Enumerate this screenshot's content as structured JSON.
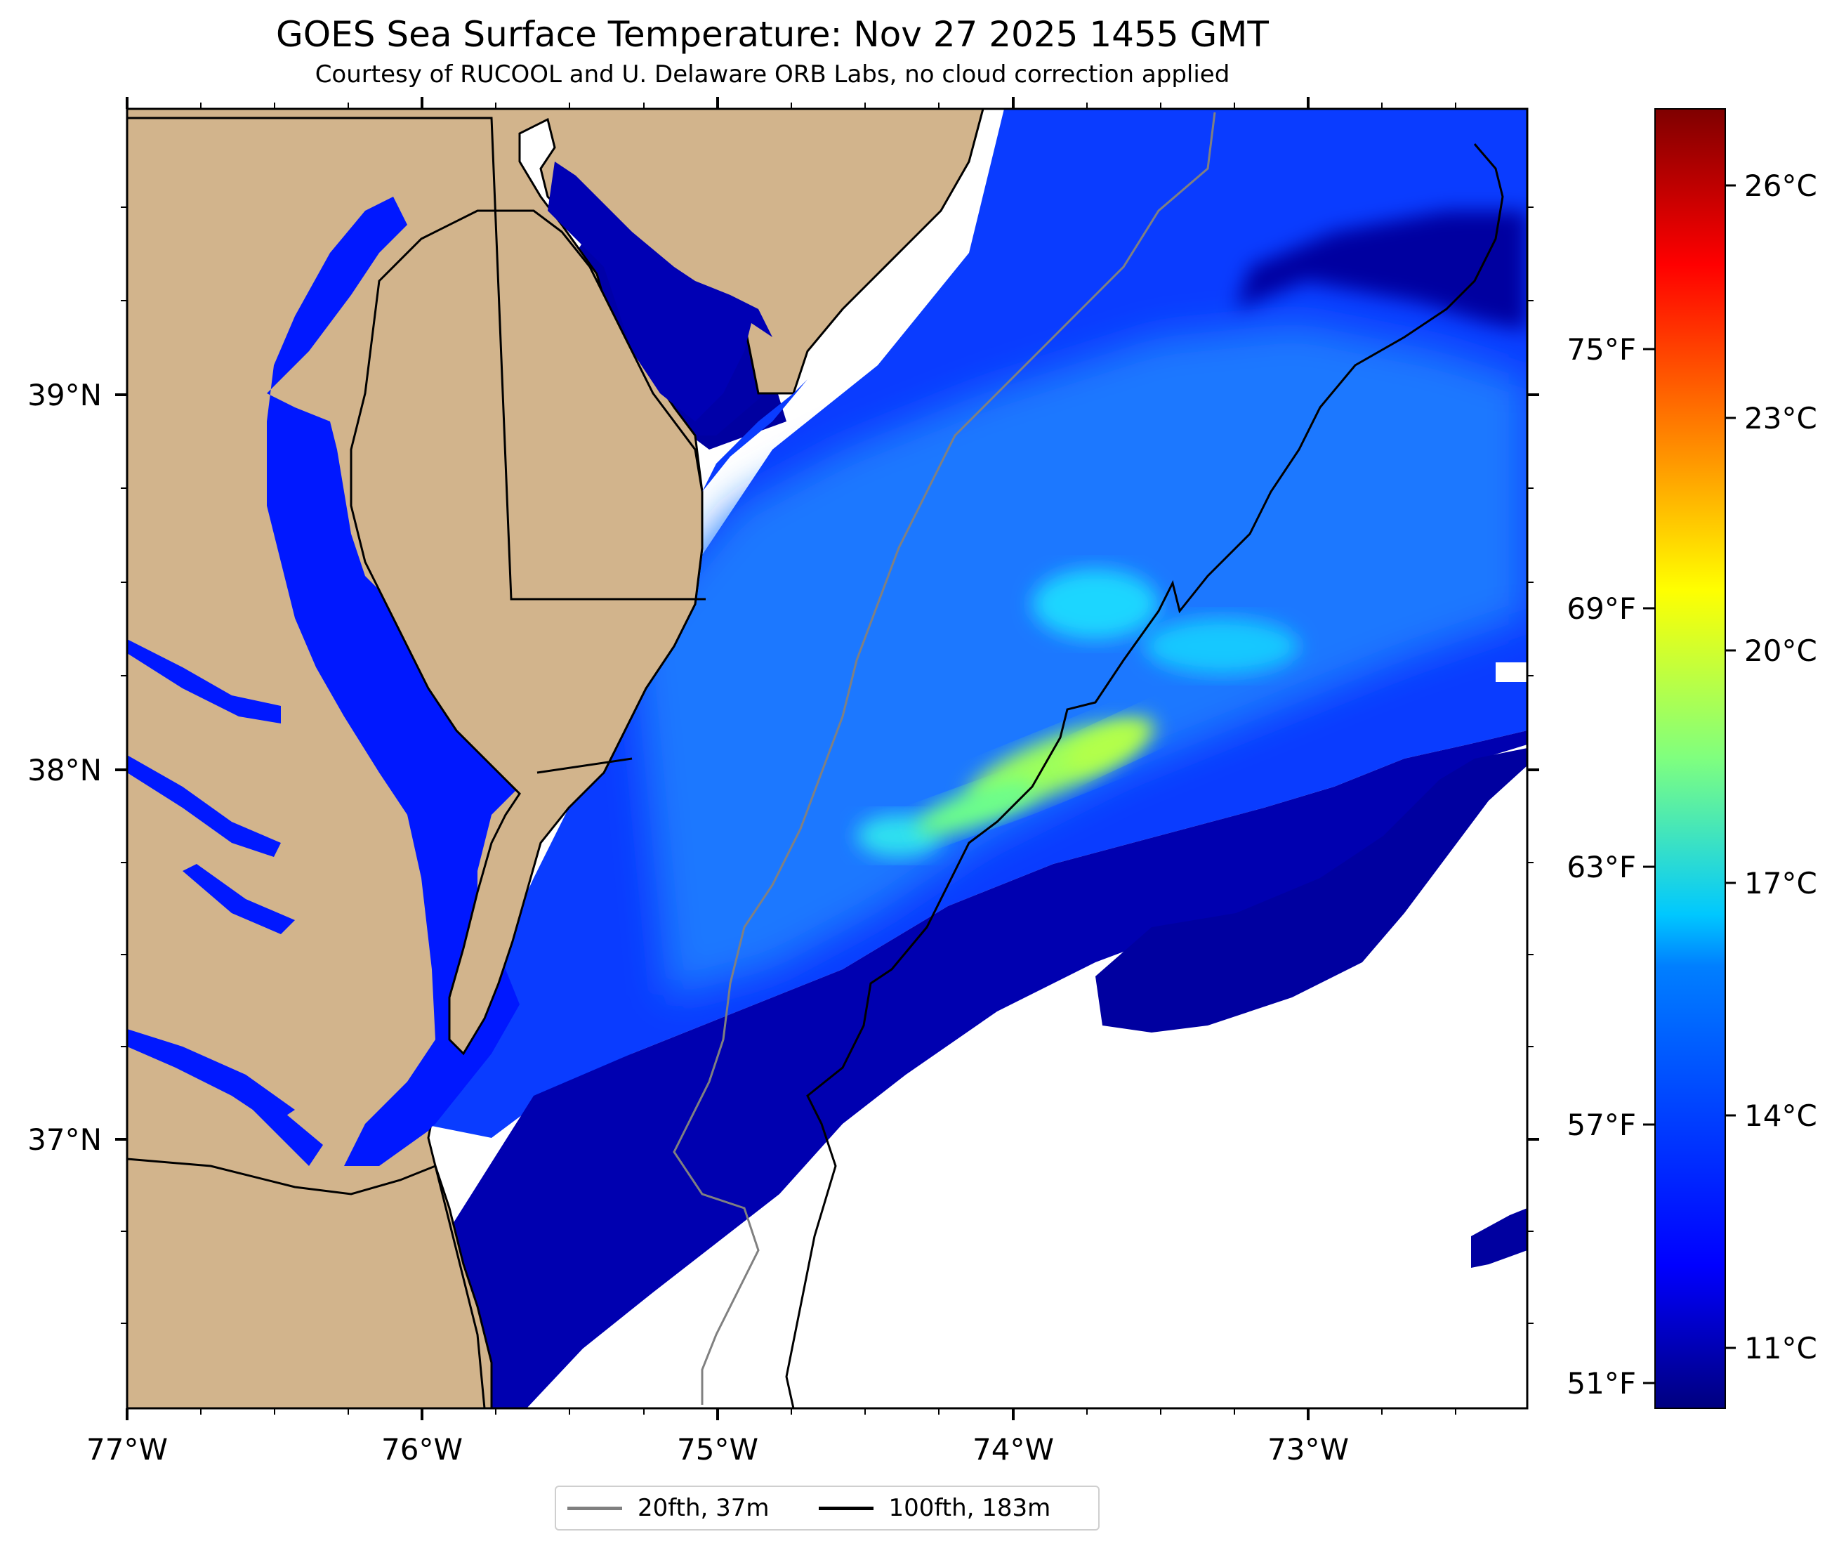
{
  "title": "GOES Sea Surface Temperature: Nov 27 2025 1455 GMT",
  "subtitle": "Courtesy of RUCOOL and U. Delaware ORB Labs, no cloud correction applied",
  "chart_data": {
    "type": "heatmap",
    "variable": "Sea Surface Temperature",
    "x_axis": {
      "labels": [
        "77°W",
        "76°W",
        "75°W",
        "74°W",
        "73°W"
      ],
      "values": [
        -77,
        -76,
        -75,
        -74,
        -73
      ],
      "range": [
        -77,
        -72.25
      ]
    },
    "y_axis": {
      "labels": [
        "39°N",
        "38°N",
        "37°N"
      ],
      "values": [
        39,
        38,
        37
      ],
      "range": [
        36.3,
        39.8
      ]
    },
    "fahrenheit_axis": {
      "labels": [
        "75°F",
        "69°F",
        "63°F",
        "57°F",
        "51°F"
      ],
      "values": [
        75,
        69,
        63,
        57,
        51
      ]
    },
    "colorbar": {
      "units": "°C",
      "range": [
        10,
        27
      ],
      "tick_labels": [
        "26°C",
        "23°C",
        "20°C",
        "17°C",
        "14°C",
        "11°C"
      ],
      "tick_values": [
        26,
        23,
        20,
        17,
        14,
        11
      ],
      "colormap": "jet"
    },
    "regions": [
      {
        "name": "Chesapeake Bay",
        "approx_temp_c": 12
      },
      {
        "name": "Delaware Bay",
        "approx_temp_c": 11
      },
      {
        "name": "Nearshore shelf",
        "approx_temp_c": 12.5
      },
      {
        "name": "Mid-shelf",
        "approx_temp_c": 14
      },
      {
        "name": "Warm filaments near 38°N 74°W",
        "approx_temp_c": 18.5
      },
      {
        "name": "Offshore cold band",
        "approx_temp_c": 10.5
      }
    ]
  },
  "legend": {
    "items": [
      {
        "label": "20fth, 37m",
        "color": "#808080"
      },
      {
        "label": "100fth, 183m",
        "color": "#000000"
      }
    ]
  },
  "colors": {
    "land": "#d2b48c",
    "no_data": "#ffffff",
    "isobath_20": "#808080",
    "isobath_100": "#000000"
  }
}
